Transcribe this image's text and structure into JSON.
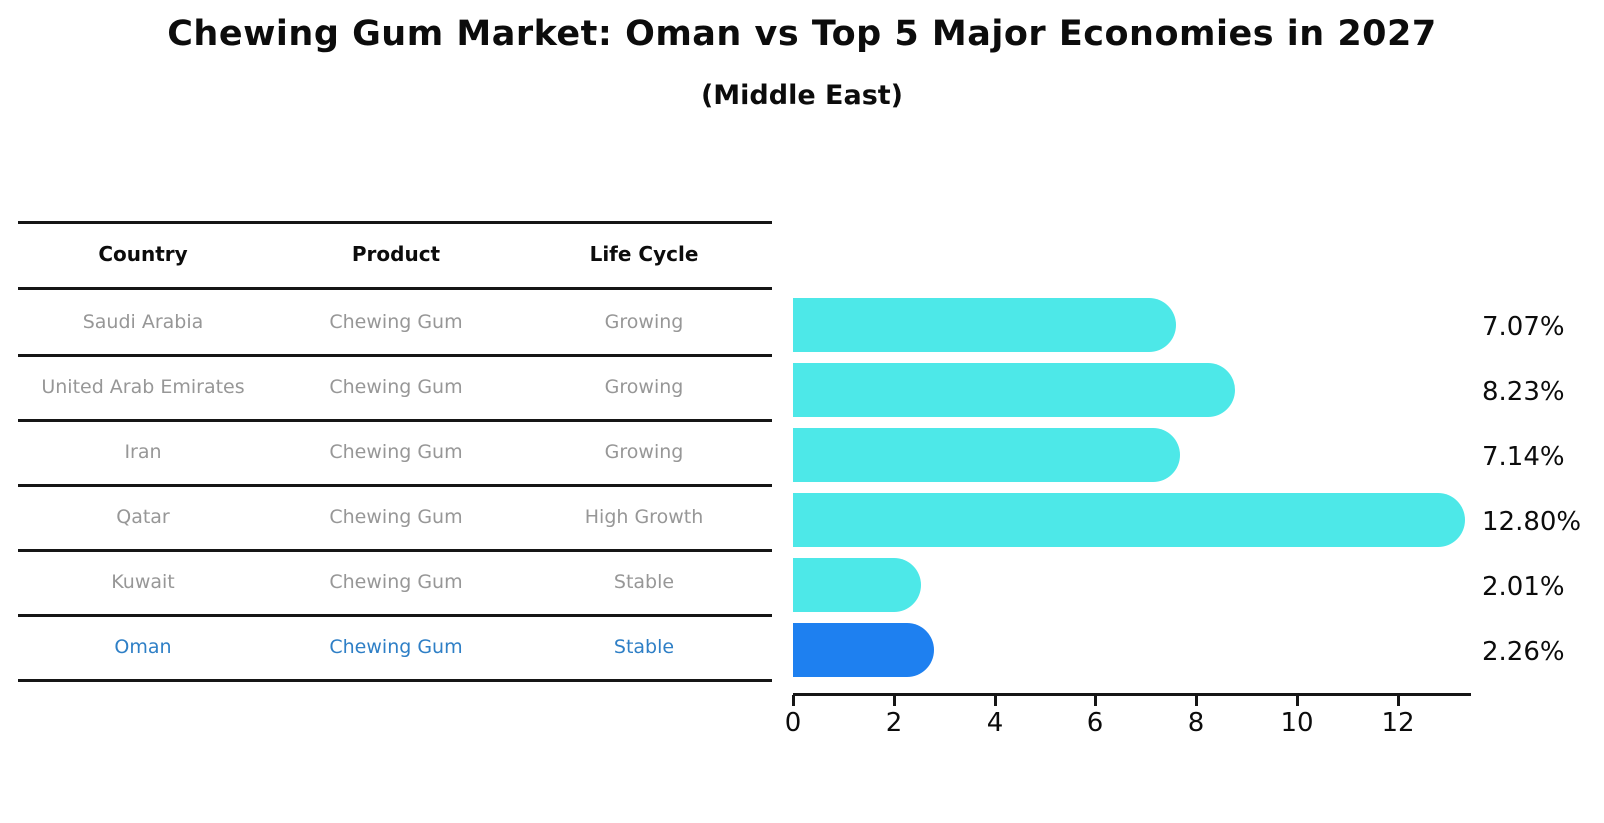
{
  "title": "Chewing Gum Market: Oman vs Top 5 Major Economies in 2027",
  "subtitle": "(Middle East)",
  "table": {
    "headers": [
      "Country",
      "Product",
      "Life Cycle"
    ],
    "rows": [
      {
        "country": "Saudi Arabia",
        "product": "Chewing Gum",
        "life_cycle": "Growing",
        "highlighted": false
      },
      {
        "country": "United Arab Emirates",
        "product": "Chewing Gum",
        "life_cycle": "Growing",
        "highlighted": false
      },
      {
        "country": "Iran",
        "product": "Chewing Gum",
        "life_cycle": "Growing",
        "highlighted": false
      },
      {
        "country": "Qatar",
        "product": "Chewing Gum",
        "life_cycle": "High Growth",
        "highlighted": false
      },
      {
        "country": "Kuwait",
        "product": "Chewing Gum",
        "life_cycle": "Stable",
        "highlighted": false
      },
      {
        "country": "Oman",
        "product": "Chewing Gum",
        "life_cycle": "Stable",
        "highlighted": true
      }
    ]
  },
  "chart_data": {
    "type": "bar",
    "orientation": "horizontal",
    "title": "Chewing Gum Market: Oman vs Top 5 Major Economies in 2027",
    "subtitle": "(Middle East)",
    "categories": [
      "Saudi Arabia",
      "United Arab Emirates",
      "Iran",
      "Qatar",
      "Kuwait",
      "Oman"
    ],
    "values": [
      7.07,
      8.23,
      7.14,
      12.8,
      2.01,
      2.26
    ],
    "value_labels": [
      "7.07%",
      "8.23%",
      "7.14%",
      "12.80%",
      "2.01%",
      "2.26%"
    ],
    "unit": "%",
    "xticks": [
      "0",
      "2",
      "4",
      "6",
      "8",
      "10",
      "12"
    ],
    "xlim": [
      0,
      13.4
    ],
    "grid": false,
    "legend": "none",
    "bar_color": "#4DE8E8",
    "highlight_index": 5,
    "highlight_color": "#1E80F0",
    "highlight_text_color": "#2E7FC6",
    "axis_color": "#161616",
    "label_color": "#0c0c0c",
    "row_text_color": "#979797"
  }
}
